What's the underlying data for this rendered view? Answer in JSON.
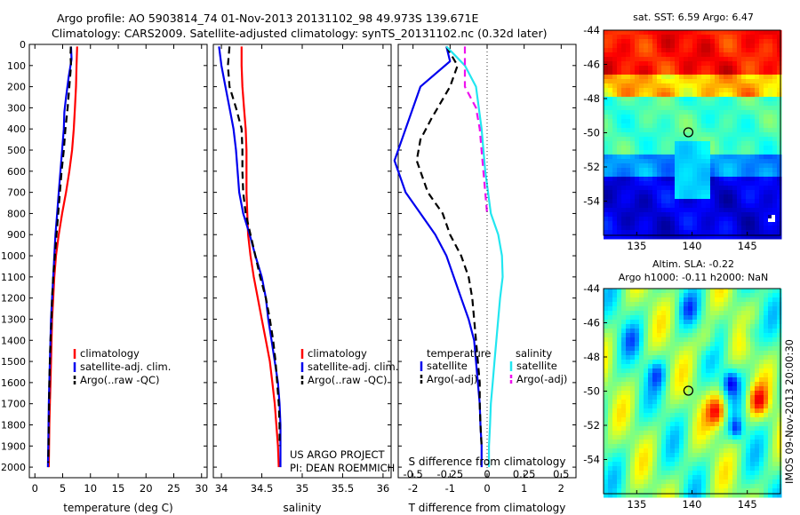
{
  "figure": {
    "title_line1": "Argo profile: AO 5903814_74 01-Nov-2013 20131102_98 49.973S 139.671E",
    "title_line2": "Climatology: CARS2009. Satellite-adjusted climatology: synTS_20131102.nc (0.32d later)",
    "credit_line1": "US ARGO PROJECT",
    "credit_line2": "PI: DEAN ROEMMICH",
    "timestamp": "IMOS 09-Nov-2013 20:00:30"
  },
  "colors": {
    "climatology": "#ff0000",
    "satellite": "#0000ee",
    "argo": "#000000",
    "salinity_satellite": "#22e6f0",
    "salinity_argo": "#ee11ee"
  },
  "chart_data": [
    {
      "type": "line",
      "panel": "temperature",
      "xlabel": "temperature (deg C)",
      "xlim": [
        -1,
        31
      ],
      "xticks": [
        0,
        5,
        10,
        15,
        20,
        25,
        30
      ],
      "ylim": [
        2050,
        0
      ],
      "yticks": [
        0,
        100,
        200,
        300,
        400,
        500,
        600,
        700,
        800,
        900,
        1000,
        1100,
        1200,
        1300,
        1400,
        1500,
        1600,
        1700,
        1800,
        1900,
        2000
      ],
      "legend": [
        "climatology",
        "satellite-adj. clim.",
        "Argo(..raw -QC)"
      ],
      "series": [
        {
          "name": "climatology",
          "color": "#ff0000",
          "dash": "solid",
          "points": [
            [
              7.6,
              10
            ],
            [
              7.5,
              100
            ],
            [
              7.4,
              200
            ],
            [
              7.2,
              300
            ],
            [
              7.0,
              400
            ],
            [
              6.7,
              500
            ],
            [
              6.2,
              600
            ],
            [
              5.6,
              700
            ],
            [
              4.9,
              800
            ],
            [
              4.3,
              900
            ],
            [
              3.8,
              1000
            ],
            [
              3.5,
              1100
            ],
            [
              3.3,
              1200
            ],
            [
              3.1,
              1300
            ],
            [
              3.0,
              1400
            ],
            [
              2.9,
              1500
            ],
            [
              2.8,
              1600
            ],
            [
              2.7,
              1700
            ],
            [
              2.6,
              1800
            ],
            [
              2.55,
              1900
            ],
            [
              2.5,
              2000
            ]
          ]
        },
        {
          "name": "satellite-adj. clim.",
          "color": "#0000ee",
          "dash": "solid",
          "points": [
            [
              6.5,
              10
            ],
            [
              6.6,
              70
            ],
            [
              6.1,
              150
            ],
            [
              5.6,
              250
            ],
            [
              5.3,
              320
            ],
            [
              5.2,
              400
            ],
            [
              4.9,
              500
            ],
            [
              4.6,
              600
            ],
            [
              4.3,
              700
            ],
            [
              4.0,
              800
            ],
            [
              3.7,
              900
            ],
            [
              3.5,
              1000
            ],
            [
              3.3,
              1100
            ],
            [
              3.1,
              1200
            ],
            [
              2.9,
              1300
            ],
            [
              2.8,
              1400
            ],
            [
              2.7,
              1500
            ],
            [
              2.6,
              1600
            ],
            [
              2.5,
              1700
            ],
            [
              2.45,
              1800
            ],
            [
              2.4,
              1900
            ],
            [
              2.35,
              2000
            ]
          ]
        },
        {
          "name": "Argo(..raw -QC)",
          "color": "#000000",
          "dash": "dashed",
          "points": [
            [
              6.47,
              10
            ],
            [
              6.4,
              50
            ],
            [
              6.5,
              100
            ],
            [
              6.2,
              200
            ],
            [
              5.9,
              300
            ],
            [
              5.5,
              400
            ],
            [
              5.2,
              500
            ],
            [
              4.8,
              600
            ],
            [
              4.5,
              700
            ],
            [
              4.2,
              800
            ],
            [
              3.9,
              900
            ],
            [
              3.6,
              1000
            ],
            [
              3.3,
              1100
            ],
            [
              3.1,
              1200
            ],
            [
              3.0,
              1300
            ],
            [
              2.8,
              1400
            ],
            [
              2.7,
              1500
            ],
            [
              2.6,
              1600
            ],
            [
              2.55,
              1700
            ],
            [
              2.5,
              1800
            ],
            [
              2.45,
              1900
            ],
            [
              2.4,
              1980
            ]
          ]
        }
      ]
    },
    {
      "type": "line",
      "panel": "salinity",
      "xlabel": "salinity",
      "xlim": [
        33.9,
        36.1
      ],
      "xticks": [
        34,
        34.5,
        35,
        35.5,
        36
      ],
      "xtick_labels": [
        "34",
        "34.5",
        "35",
        "35.5",
        "36"
      ],
      "ylim": [
        2050,
        0
      ],
      "legend": [
        "climatology",
        "satellite-adj. clim.",
        "Argo(..raw -QC)"
      ],
      "series": [
        {
          "name": "climatology",
          "color": "#ff0000",
          "dash": "solid",
          "points": [
            [
              34.25,
              10
            ],
            [
              34.25,
              100
            ],
            [
              34.26,
              200
            ],
            [
              34.28,
              300
            ],
            [
              34.3,
              400
            ],
            [
              34.31,
              500
            ],
            [
              34.31,
              600
            ],
            [
              34.31,
              700
            ],
            [
              34.32,
              800
            ],
            [
              34.33,
              900
            ],
            [
              34.36,
              1000
            ],
            [
              34.4,
              1100
            ],
            [
              34.45,
              1200
            ],
            [
              34.5,
              1300
            ],
            [
              34.55,
              1400
            ],
            [
              34.6,
              1500
            ],
            [
              34.63,
              1600
            ],
            [
              34.66,
              1700
            ],
            [
              34.68,
              1800
            ],
            [
              34.7,
              1900
            ],
            [
              34.71,
              2000
            ]
          ]
        },
        {
          "name": "satellite-adj. clim.",
          "color": "#0000ee",
          "dash": "solid",
          "points": [
            [
              33.97,
              10
            ],
            [
              34.0,
              100
            ],
            [
              34.05,
              200
            ],
            [
              34.1,
              300
            ],
            [
              34.15,
              400
            ],
            [
              34.18,
              500
            ],
            [
              34.2,
              600
            ],
            [
              34.22,
              700
            ],
            [
              34.27,
              800
            ],
            [
              34.35,
              900
            ],
            [
              34.42,
              1000
            ],
            [
              34.5,
              1100
            ],
            [
              34.55,
              1200
            ],
            [
              34.58,
              1300
            ],
            [
              34.62,
              1400
            ],
            [
              34.66,
              1500
            ],
            [
              34.7,
              1600
            ],
            [
              34.72,
              1700
            ],
            [
              34.73,
              1800
            ],
            [
              34.73,
              1900
            ],
            [
              34.73,
              2000
            ]
          ]
        },
        {
          "name": "Argo(..raw -QC)",
          "color": "#000000",
          "dash": "dashed",
          "points": [
            [
              34.1,
              10
            ],
            [
              34.08,
              100
            ],
            [
              34.1,
              200
            ],
            [
              34.18,
              300
            ],
            [
              34.25,
              400
            ],
            [
              34.26,
              500
            ],
            [
              34.26,
              600
            ],
            [
              34.27,
              700
            ],
            [
              34.3,
              800
            ],
            [
              34.36,
              900
            ],
            [
              34.42,
              1000
            ],
            [
              34.48,
              1100
            ],
            [
              34.55,
              1200
            ],
            [
              34.6,
              1300
            ],
            [
              34.64,
              1400
            ],
            [
              34.67,
              1500
            ],
            [
              34.69,
              1600
            ],
            [
              34.71,
              1700
            ],
            [
              34.72,
              1800
            ],
            [
              34.72,
              1900
            ]
          ]
        }
      ]
    },
    {
      "type": "line",
      "panel": "difference",
      "xlabel": "T difference from climatology",
      "xlabel_top": "S difference from climatology",
      "xlim": [
        -2.4,
        2.4
      ],
      "xticks": [
        -2,
        -1,
        0,
        1,
        2
      ],
      "xtick_labels": [
        "-2",
        "-1",
        "0",
        "1",
        "2"
      ],
      "top_ticks": [
        -2,
        -1,
        0,
        1,
        2
      ],
      "top_tick_labels": [
        "-0.5",
        "-0.25",
        "0",
        "0.25",
        "0.5"
      ],
      "ylim": [
        2050,
        0
      ],
      "legend_left_title": "temperature",
      "legend_left": [
        "satellite",
        "Argo(-adj)"
      ],
      "legend_right_title": "salinity",
      "legend_right": [
        "satellite",
        "Argo(-adj)"
      ],
      "series": [
        {
          "name": "temperature satellite",
          "color": "#0000ee",
          "dash": "solid",
          "points": [
            [
              -1.1,
              10
            ],
            [
              -1.0,
              80
            ],
            [
              -1.8,
              200
            ],
            [
              -2.2,
              400
            ],
            [
              -2.5,
              550
            ],
            [
              -2.2,
              700
            ],
            [
              -1.8,
              800
            ],
            [
              -1.4,
              900
            ],
            [
              -1.1,
              1000
            ],
            [
              -0.9,
              1100
            ],
            [
              -0.7,
              1200
            ],
            [
              -0.5,
              1300
            ],
            [
              -0.35,
              1400
            ],
            [
              -0.3,
              1500
            ],
            [
              -0.25,
              1600
            ],
            [
              -0.2,
              1700
            ],
            [
              -0.18,
              1800
            ],
            [
              -0.15,
              1900
            ],
            [
              -0.15,
              2000
            ]
          ]
        },
        {
          "name": "temperature Argo(-adj)",
          "color": "#000000",
          "dash": "dashed",
          "points": [
            [
              -1.1,
              10
            ],
            [
              -0.8,
              100
            ],
            [
              -1.0,
              200
            ],
            [
              -1.5,
              350
            ],
            [
              -1.8,
              450
            ],
            [
              -1.9,
              550
            ],
            [
              -1.6,
              700
            ],
            [
              -1.2,
              800
            ],
            [
              -1.0,
              900
            ],
            [
              -0.7,
              1000
            ],
            [
              -0.5,
              1100
            ],
            [
              -0.4,
              1200
            ],
            [
              -0.35,
              1300
            ],
            [
              -0.3,
              1400
            ],
            [
              -0.25,
              1500
            ],
            [
              -0.2,
              1600
            ],
            [
              -0.2,
              1700
            ],
            [
              -0.18,
              1800
            ],
            [
              -0.15,
              1900
            ]
          ]
        },
        {
          "name": "salinity satellite",
          "color": "#22e6f0",
          "dash": "solid",
          "points": [
            [
              -1.1,
              10
            ],
            [
              -0.6,
              100
            ],
            [
              -0.3,
              200
            ],
            [
              -0.15,
              400
            ],
            [
              -0.05,
              600
            ],
            [
              0.1,
              800
            ],
            [
              0.3,
              900
            ],
            [
              0.4,
              1000
            ],
            [
              0.42,
              1100
            ],
            [
              0.35,
              1200
            ],
            [
              0.3,
              1300
            ],
            [
              0.25,
              1400
            ],
            [
              0.2,
              1500
            ],
            [
              0.15,
              1600
            ],
            [
              0.1,
              1700
            ],
            [
              0.08,
              1800
            ],
            [
              0.05,
              1900
            ],
            [
              0.05,
              2000
            ]
          ]
        },
        {
          "name": "salinity Argo(-adj)",
          "color": "#ee11ee",
          "dash": "dashed",
          "points": [
            [
              -0.6,
              10
            ],
            [
              -0.6,
              200
            ],
            [
              -0.3,
              300
            ],
            [
              -0.2,
              400
            ],
            [
              -0.1,
              600
            ],
            [
              0.0,
              800
            ]
          ]
        }
      ]
    },
    {
      "type": "heatmap",
      "panel": "sst-map",
      "title": "sat. SST: 6.59 Argo: 6.47",
      "xlim": [
        132,
        148
      ],
      "ylim": [
        -56,
        -44
      ],
      "xticks": [
        135,
        140,
        145
      ],
      "yticks": [
        -44,
        -46,
        -48,
        -50,
        -52,
        -54
      ],
      "marker": {
        "lon": 139.671,
        "lat": -49.973
      }
    },
    {
      "type": "heatmap",
      "panel": "sla-map",
      "title_line1": "Altim. SLA: -0.22",
      "title_line2": "Argo h1000: -0.11 h2000: NaN",
      "xlim": [
        132,
        148
      ],
      "ylim": [
        -56,
        -44
      ],
      "xticks": [
        135,
        140,
        145
      ],
      "yticks": [
        -44,
        -46,
        -48,
        -50,
        -52,
        -54
      ],
      "marker": {
        "lon": 139.671,
        "lat": -49.973
      }
    }
  ]
}
